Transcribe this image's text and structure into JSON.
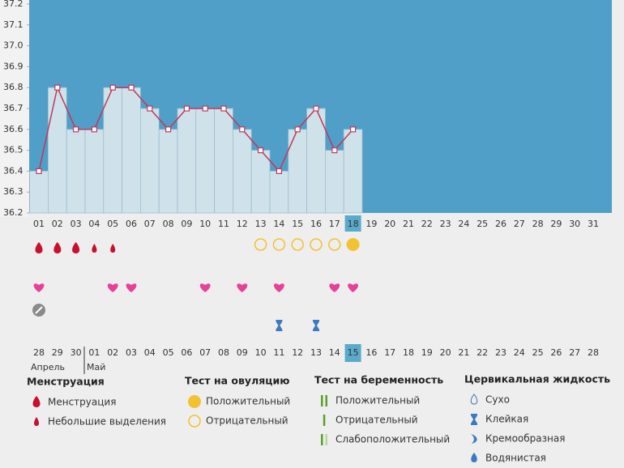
{
  "chart_data": {
    "type": "bar",
    "categories": [
      "01",
      "02",
      "03",
      "04",
      "05",
      "06",
      "07",
      "08",
      "09",
      "10",
      "11",
      "12",
      "13",
      "14",
      "15",
      "16",
      "17",
      "18",
      "19",
      "20",
      "21",
      "22",
      "23",
      "24",
      "25",
      "26",
      "27",
      "28",
      "29",
      "30",
      "31"
    ],
    "values": [
      36.4,
      36.8,
      36.6,
      36.6,
      36.8,
      36.8,
      36.7,
      36.6,
      36.7,
      36.7,
      36.7,
      36.6,
      36.5,
      36.4,
      36.6,
      36.7,
      36.5,
      36.6,
      null,
      null,
      null,
      null,
      null,
      null,
      null,
      null,
      null,
      null,
      null,
      null,
      null
    ],
    "ylim": [
      36.2,
      37.2
    ],
    "yticks": [
      36.2,
      36.3,
      36.4,
      36.5,
      36.6,
      36.7,
      36.8,
      36.9,
      {
        "value": 37,
        "label": "37.0"
      },
      37.1,
      37.2
    ],
    "bar_color": "#cfe2ea",
    "plot_color": "#4f9fc8",
    "line_color": "#c2375b",
    "highlight_color": "#5aaacb",
    "today": "18",
    "today_date": "15",
    "dates": [
      {
        "label": "28"
      },
      {
        "label": "29"
      },
      {
        "label": "30",
        "color": "#d0213c"
      },
      {
        "label": "01",
        "color": "#d0213c"
      },
      {
        "label": "02"
      },
      {
        "label": "03"
      },
      {
        "label": "04"
      },
      {
        "label": "05"
      },
      {
        "label": "06"
      },
      {
        "label": "07",
        "color": "#d0213c"
      },
      {
        "label": "08",
        "color": "#d0213c"
      },
      {
        "label": "09"
      },
      {
        "label": "10"
      },
      {
        "label": "11"
      },
      {
        "label": "12"
      },
      {
        "label": "13"
      },
      {
        "label": "14",
        "color": "#d0213c"
      },
      {
        "label": "15"
      },
      {
        "label": "16"
      },
      {
        "label": "17"
      },
      {
        "label": "18"
      },
      {
        "label": "19"
      },
      {
        "label": "20"
      },
      {
        "label": "21",
        "color": "#d0213c"
      },
      {
        "label": "22",
        "color": "#d0213c"
      },
      {
        "label": "23"
      },
      {
        "label": "24"
      },
      {
        "label": "25"
      },
      {
        "label": "26"
      },
      {
        "label": "27"
      },
      {
        "label": "28",
        "color": "#d0213c"
      }
    ],
    "months": [
      {
        "label": "Апрель",
        "from": "28"
      },
      {
        "label": "Май",
        "from": "01"
      }
    ],
    "rows": [
      {
        "icon": "drop",
        "days": [
          "01",
          "02",
          "03"
        ]
      },
      {
        "icon": "drop-small",
        "days": [
          "04",
          "05"
        ]
      },
      {
        "icon": "circle-open",
        "days": [
          "13",
          "14",
          "15",
          "16",
          "17"
        ]
      },
      {
        "icon": "circle-full",
        "days": [
          "18"
        ]
      },
      {
        "icon": "heart",
        "days": [
          "01",
          "05",
          "06",
          "10",
          "12",
          "14",
          "17",
          "18"
        ]
      },
      {
        "icon": "note",
        "days": [
          "01"
        ]
      },
      {
        "icon": "sticky",
        "days": [
          "14",
          "16"
        ]
      }
    ],
    "legend": [
      {
        "title": "Менструация",
        "items": [
          {
            "label": "Менструация",
            "icon": "drop"
          },
          {
            "label": "Небольшие выделения",
            "icon": "drop-small"
          }
        ]
      },
      {
        "title": "Тест на овуляцию",
        "items": [
          {
            "label": "Положительный",
            "icon": "circle-full"
          },
          {
            "label": "Отрицательный",
            "icon": "circle-open"
          }
        ]
      },
      {
        "title": "Тест на беременность",
        "items": [
          {
            "label": "Положительный",
            "icon": "bars2"
          },
          {
            "label": "Отрицательный",
            "icon": "bars1"
          },
          {
            "label": "Слабоположительный",
            "icon": "bars-weak"
          }
        ]
      },
      {
        "title": "Цервикальная жидкость",
        "items": [
          {
            "label": "Сухо",
            "icon": "dry"
          },
          {
            "label": "Клейкая",
            "icon": "sticky"
          },
          {
            "label": "Кремообразная",
            "icon": "creamy"
          },
          {
            "label": "Водянистая",
            "icon": "watery"
          }
        ]
      }
    ]
  }
}
